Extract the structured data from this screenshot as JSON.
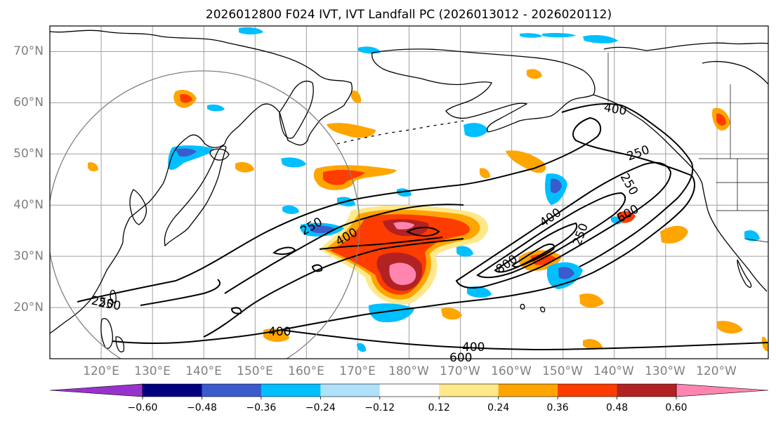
{
  "title": "2026012800 F024 IVT, IVT Landfall PC (2026013012 - 2026020112)",
  "map": {
    "projection": "PlateCarree",
    "extent": {
      "lon_min": 110,
      "lon_max": 250,
      "lat_min": 10,
      "lat_max": 75
    },
    "lat_labels": [
      "20°N",
      "30°N",
      "40°N",
      "50°N",
      "60°N",
      "70°N"
    ],
    "lon_labels": [
      "120°E",
      "130°E",
      "140°E",
      "150°E",
      "160°E",
      "170°E",
      "180°W",
      "170°W",
      "160°W",
      "150°W",
      "140°W",
      "130°W",
      "120°W"
    ],
    "gridlines": true,
    "gridline_color": "#a0a0a0",
    "coastline_color": "#000000",
    "border_lines": true
  },
  "ivt_contours": {
    "levels": [
      250,
      400,
      600,
      800
    ],
    "line_color": "#000000",
    "labels": [
      "250",
      "400",
      "250",
      "400",
      "600",
      "800",
      "250",
      "250",
      "400",
      "600",
      "400",
      "400",
      "250",
      "250"
    ]
  },
  "landfall_pc_shading": {
    "description_levels": [
      -0.6,
      -0.48,
      -0.36,
      -0.24,
      -0.12,
      0.12,
      0.24,
      0.36,
      0.48,
      0.6
    ]
  },
  "colorbar": {
    "orientation": "horizontal",
    "extend": "both",
    "tick_labels": [
      "−0.60",
      "−0.48",
      "−0.36",
      "−0.24",
      "−0.12",
      "0.12",
      "0.24",
      "0.36",
      "0.48",
      "0.60"
    ],
    "colors": [
      "#9932cc",
      "#000080",
      "#3a5bcc",
      "#00bfff",
      "#afe1fb",
      "#ffffff",
      "#ffe88a",
      "#ffa500",
      "#ff3c00",
      "#b22222",
      "#ff85b0"
    ],
    "under_color": "#9932cc",
    "over_color": "#ff85b0"
  }
}
